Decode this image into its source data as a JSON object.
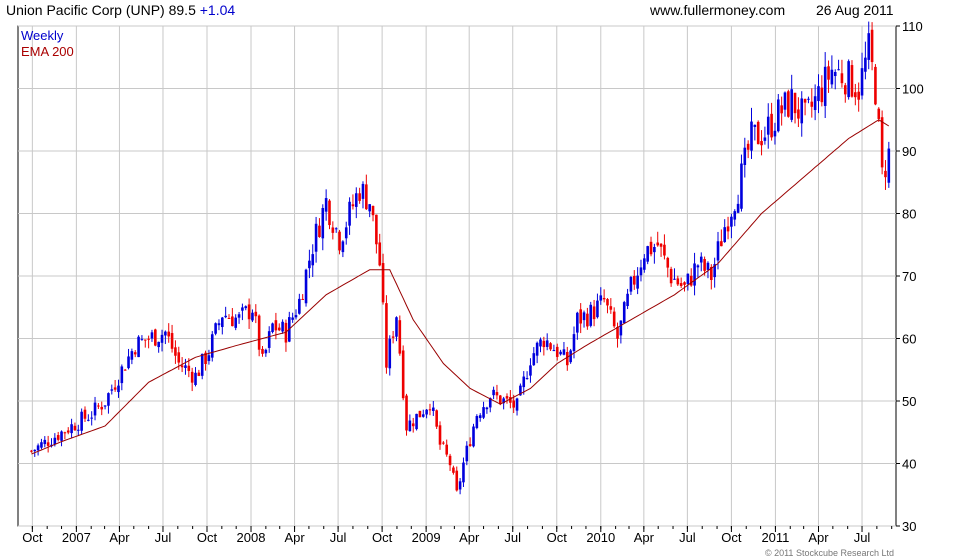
{
  "header": {
    "title": "Union Pacific Corp (UNP)",
    "price": "89.5",
    "change": "+1.04",
    "site": "www.fullermoney.com",
    "date": "26 Aug 2011"
  },
  "legend": {
    "weekly": "Weekly",
    "ema": "EMA 200"
  },
  "credit": "© 2011 Stockcube Research Ltd",
  "colors": {
    "up": "#0000dd",
    "down": "#ee0000",
    "ema": "#990000",
    "grid": "#c8c8c8",
    "weekly_label": "#0000cc",
    "ema_label": "#aa0000"
  },
  "chart_data": {
    "type": "candlestick",
    "title": "Union Pacific Corp (UNP)",
    "ylim": [
      30,
      110
    ],
    "y_ticks": [
      30,
      40,
      50,
      60,
      70,
      80,
      90,
      100,
      110
    ],
    "x_ticks": [
      "Oct",
      "2007",
      "Apr",
      "Jul",
      "Oct",
      "2008",
      "Apr",
      "Jul",
      "Oct",
      "2009",
      "Apr",
      "Jul",
      "Oct",
      "2010",
      "Apr",
      "Jul",
      "Oct",
      "2011",
      "Apr",
      "Jul"
    ],
    "close_path": [
      [
        "2006-09-29",
        42
      ],
      [
        "2006-12-01",
        45
      ],
      [
        "2007-02-02",
        48
      ],
      [
        "2007-03-02",
        50
      ],
      [
        "2007-04-06",
        55
      ],
      [
        "2007-05-04",
        59
      ],
      [
        "2007-06-01",
        60
      ],
      [
        "2007-07-06",
        61
      ],
      [
        "2007-08-03",
        56
      ],
      [
        "2007-09-07",
        54
      ],
      [
        "2007-10-05",
        58
      ],
      [
        "2007-11-02",
        64
      ],
      [
        "2007-12-07",
        63
      ],
      [
        "2008-01-04",
        65
      ],
      [
        "2008-01-25",
        56
      ],
      [
        "2008-02-15",
        62
      ],
      [
        "2008-03-14",
        61
      ],
      [
        "2008-04-11",
        66
      ],
      [
        "2008-05-09",
        75
      ],
      [
        "2008-06-06",
        82
      ],
      [
        "2008-07-04",
        76
      ],
      [
        "2008-07-25",
        80
      ],
      [
        "2008-08-15",
        84
      ],
      [
        "2008-09-05",
        82
      ],
      [
        "2008-09-26",
        72
      ],
      [
        "2008-10-10",
        56
      ],
      [
        "2008-10-31",
        64
      ],
      [
        "2008-11-21",
        46
      ],
      [
        "2008-12-19",
        48
      ],
      [
        "2009-01-09",
        50
      ],
      [
        "2009-01-30",
        43
      ],
      [
        "2009-02-20",
        40
      ],
      [
        "2009-03-06",
        35
      ],
      [
        "2009-03-20",
        40
      ],
      [
        "2009-04-17",
        48
      ],
      [
        "2009-05-15",
        51
      ],
      [
        "2009-06-12",
        50
      ],
      [
        "2009-07-10",
        49
      ],
      [
        "2009-08-07",
        57
      ],
      [
        "2009-09-04",
        60
      ],
      [
        "2009-10-02",
        58
      ],
      [
        "2009-10-23",
        56
      ],
      [
        "2009-11-13",
        63
      ],
      [
        "2009-12-11",
        64
      ],
      [
        "2010-01-08",
        66
      ],
      [
        "2010-02-05",
        60
      ],
      [
        "2010-03-05",
        68
      ],
      [
        "2010-04-02",
        74
      ],
      [
        "2010-04-30",
        75
      ],
      [
        "2010-05-28",
        70
      ],
      [
        "2010-06-25",
        68
      ],
      [
        "2010-07-23",
        72
      ],
      [
        "2010-08-20",
        70
      ],
      [
        "2010-09-17",
        78
      ],
      [
        "2010-10-15",
        84
      ],
      [
        "2010-11-12",
        92
      ],
      [
        "2010-12-10",
        93
      ],
      [
        "2011-01-07",
        96
      ],
      [
        "2011-02-04",
        98
      ],
      [
        "2011-03-04",
        95
      ],
      [
        "2011-04-01",
        99
      ],
      [
        "2011-04-29",
        103
      ],
      [
        "2011-05-27",
        102
      ],
      [
        "2011-06-24",
        100
      ],
      [
        "2011-07-15",
        106
      ],
      [
        "2011-07-29",
        100
      ],
      [
        "2011-08-05",
        93
      ],
      [
        "2011-08-12",
        86
      ],
      [
        "2011-08-26",
        89.5
      ]
    ],
    "ema_200": [
      [
        "2006-09-29",
        41.5
      ],
      [
        "2006-12-01",
        43.5
      ],
      [
        "2007-03-02",
        46
      ],
      [
        "2007-06-01",
        53
      ],
      [
        "2007-09-07",
        57
      ],
      [
        "2007-12-07",
        59
      ],
      [
        "2008-03-14",
        61
      ],
      [
        "2008-06-06",
        67
      ],
      [
        "2008-09-05",
        71
      ],
      [
        "2008-10-17",
        71
      ],
      [
        "2008-12-05",
        63
      ],
      [
        "2009-02-06",
        56
      ],
      [
        "2009-04-03",
        52
      ],
      [
        "2009-06-05",
        49.5
      ],
      [
        "2009-08-07",
        52
      ],
      [
        "2009-10-02",
        56
      ],
      [
        "2009-12-04",
        59
      ],
      [
        "2010-03-05",
        63
      ],
      [
        "2010-06-04",
        67
      ],
      [
        "2010-09-03",
        72
      ],
      [
        "2010-12-03",
        80
      ],
      [
        "2011-03-04",
        86
      ],
      [
        "2011-06-03",
        92
      ],
      [
        "2011-08-05",
        95
      ],
      [
        "2011-08-26",
        94
      ]
    ]
  }
}
